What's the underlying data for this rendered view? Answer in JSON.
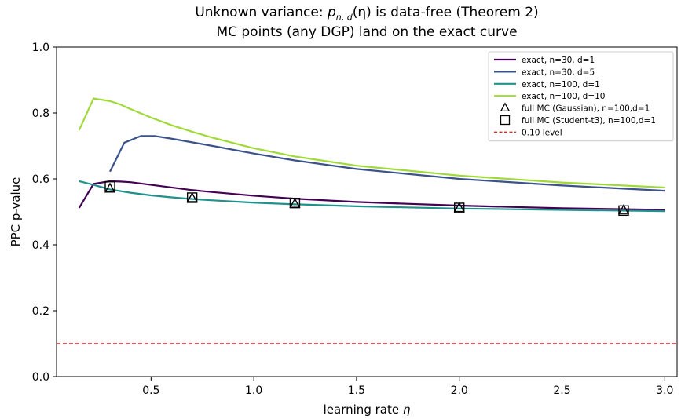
{
  "chart_data": {
    "type": "line",
    "title_line1_prefix": "Unknown variance: ",
    "title_line1_p": "p",
    "title_line1_sub": "n, d",
    "title_line1_eta": "(η)",
    "title_line1_suffix": " is data-free (Theorem 2)",
    "title_line2": "MC points (any DGP) land on the exact curve",
    "xlabel_prefix": "learning rate ",
    "xlabel_symbol": "η",
    "ylabel": "PPC p-value",
    "xlim": [
      0.04,
      3.06
    ],
    "ylim": [
      0.0,
      1.0
    ],
    "xticks": [
      0.5,
      1.0,
      1.5,
      2.0,
      2.5,
      3.0
    ],
    "xtick_labels": [
      "0.5",
      "1.0",
      "1.5",
      "2.0",
      "2.5",
      "3.0"
    ],
    "yticks": [
      0.0,
      0.2,
      0.4,
      0.6,
      0.8,
      1.0
    ],
    "ytick_labels": [
      "0.0",
      "0.2",
      "0.4",
      "0.6",
      "0.8",
      "1.0"
    ],
    "grid": false,
    "legend_position": "top-right",
    "series": [
      {
        "name": "exact, n=30, d=1",
        "kind": "line",
        "color": "#440154",
        "x": [
          0.15,
          0.22,
          0.3,
          0.35,
          0.4,
          0.5,
          0.6,
          0.7,
          0.8,
          1.0,
          1.2,
          1.5,
          2.0,
          2.5,
          3.0
        ],
        "y": [
          0.512,
          0.585,
          0.593,
          0.592,
          0.59,
          0.582,
          0.574,
          0.566,
          0.56,
          0.549,
          0.54,
          0.53,
          0.519,
          0.511,
          0.506
        ]
      },
      {
        "name": "exact, n=30, d=5",
        "kind": "line",
        "color": "#3b528b",
        "x": [
          0.3,
          0.37,
          0.45,
          0.52,
          0.6,
          0.7,
          0.8,
          1.0,
          1.2,
          1.5,
          2.0,
          2.5,
          3.0
        ],
        "y": [
          0.622,
          0.71,
          0.73,
          0.73,
          0.722,
          0.711,
          0.7,
          0.677,
          0.656,
          0.63,
          0.6,
          0.58,
          0.564
        ]
      },
      {
        "name": "exact, n=100, d=1",
        "kind": "line",
        "color": "#21918c",
        "x": [
          0.15,
          0.22,
          0.3,
          0.4,
          0.5,
          0.6,
          0.7,
          0.8,
          1.0,
          1.2,
          1.5,
          2.0,
          2.5,
          3.0
        ],
        "y": [
          0.593,
          0.582,
          0.568,
          0.558,
          0.55,
          0.544,
          0.539,
          0.535,
          0.528,
          0.523,
          0.517,
          0.51,
          0.506,
          0.502
        ]
      },
      {
        "name": "exact, n=100, d=10",
        "kind": "line",
        "color": "#a0da39",
        "x": [
          0.15,
          0.22,
          0.3,
          0.35,
          0.4,
          0.5,
          0.6,
          0.7,
          0.8,
          1.0,
          1.2,
          1.5,
          2.0,
          2.5,
          3.0
        ],
        "y": [
          0.748,
          0.844,
          0.836,
          0.826,
          0.812,
          0.786,
          0.763,
          0.743,
          0.725,
          0.693,
          0.668,
          0.64,
          0.61,
          0.589,
          0.574
        ]
      },
      {
        "name": "full MC (Gaussian), n=100,d=1",
        "kind": "marker",
        "marker": "triangle",
        "color": "#000000",
        "x": [
          0.3,
          0.7,
          1.2,
          2.0,
          2.8
        ],
        "y": [
          0.57,
          0.541,
          0.524,
          0.511,
          0.505
        ]
      },
      {
        "name": "full MC (Student-t3), n=100,d=1",
        "kind": "marker",
        "marker": "square",
        "color": "#000000",
        "x": [
          0.3,
          0.7,
          1.2,
          2.0,
          2.8
        ],
        "y": [
          0.577,
          0.543,
          0.527,
          0.512,
          0.504
        ]
      },
      {
        "name": "0.10 level",
        "kind": "hline",
        "color": "#d62728",
        "dash": true,
        "y": 0.1
      }
    ]
  }
}
